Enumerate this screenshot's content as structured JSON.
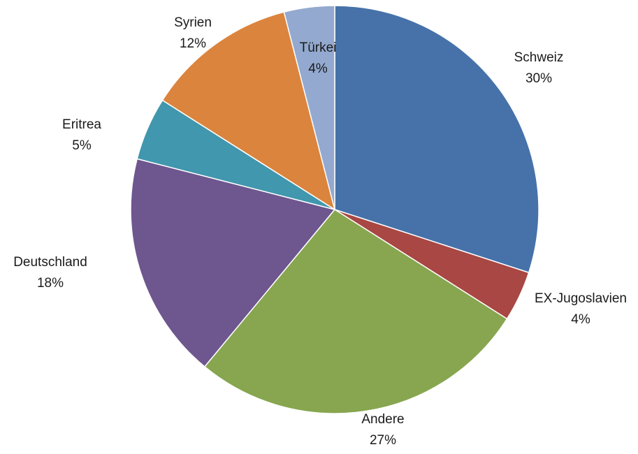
{
  "chart_data": {
    "type": "pie",
    "start_angle_deg": 0,
    "direction": "clockwise",
    "slices": [
      {
        "label": "Schweiz",
        "percent_label": "30%",
        "value": 30,
        "color": "#4672a9"
      },
      {
        "label": "EX-Jugoslavien",
        "percent_label": "4%",
        "value": 4,
        "color": "#a84743"
      },
      {
        "label": "Andere",
        "percent_label": "27%",
        "value": 27,
        "color": "#87a64f"
      },
      {
        "label": "Deutschland",
        "percent_label": "18%",
        "value": 18,
        "color": "#6e568f"
      },
      {
        "label": "Eritrea",
        "percent_label": "5%",
        "value": 5,
        "color": "#4197ad"
      },
      {
        "label": "Syrien",
        "percent_label": "12%",
        "value": 12,
        "color": "#db843d"
      },
      {
        "label": "Türkei",
        "percent_label": "4%",
        "value": 4,
        "color": "#93a9cf"
      }
    ],
    "slice_border_color": "#ffffff"
  }
}
